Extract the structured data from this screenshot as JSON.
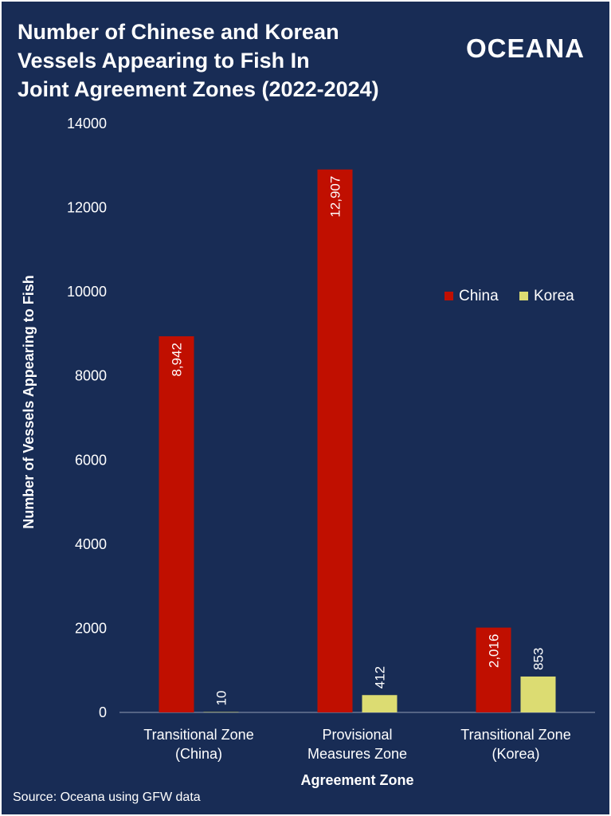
{
  "title_lines": [
    "Number of Chinese and Korean",
    "Vessels Appearing to Fish In",
    "Joint Agreement Zones (2022-2024)"
  ],
  "brand": "OCEANA",
  "source": "Source: Oceana using GFW data",
  "colors": {
    "background": "#182c55",
    "china": "#c00f00",
    "korea": "#dcdc72",
    "text": "#ffffff"
  },
  "chart_data": {
    "type": "bar",
    "categories": [
      [
        "Transitional Zone",
        "(China)"
      ],
      [
        "Provisional",
        "Measures Zone"
      ],
      [
        "Transitional Zone",
        "(Korea)"
      ]
    ],
    "series": [
      {
        "name": "China",
        "values": [
          8942,
          12907,
          2016
        ],
        "labels": [
          "8,942",
          "12,907",
          "2,016"
        ]
      },
      {
        "name": "Korea",
        "values": [
          10,
          412,
          853
        ],
        "labels": [
          "10",
          "412",
          "853"
        ]
      }
    ],
    "xlabel": "Agreement Zone",
    "ylabel": "Number of Vessels Appearing to Fish",
    "ylim": [
      0,
      14000
    ],
    "yticks": [
      0,
      2000,
      4000,
      6000,
      8000,
      10000,
      12000,
      14000
    ],
    "grid": false,
    "legend_position": "right"
  }
}
